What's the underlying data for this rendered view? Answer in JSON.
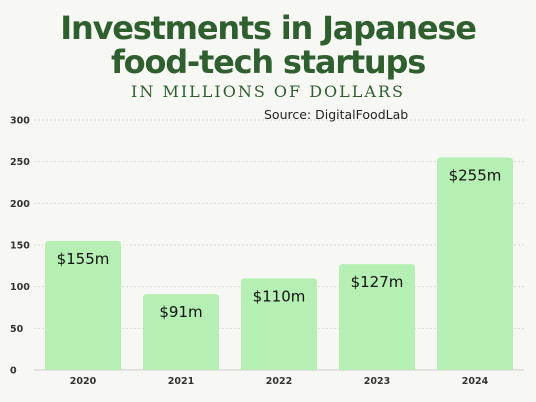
{
  "title_line1": "Investments in Japanese",
  "title_line2": "food-tech startups",
  "subtitle": "IN MILLIONS OF DOLLARS",
  "source": "Source: DigitalFoodLab",
  "colors": {
    "title": "#2f5f2f",
    "bar": "#b6efb4",
    "background": "#f7f7f4",
    "grid": "#d6d6d6"
  },
  "chart_data": {
    "type": "bar",
    "title": "Investments in Japanese food-tech startups",
    "subtitle": "IN MILLIONS OF DOLLARS",
    "categories": [
      "2020",
      "2021",
      "2022",
      "2023",
      "2024"
    ],
    "values": [
      155,
      91,
      110,
      127,
      255
    ],
    "data_labels": [
      "$155m",
      "$91m",
      "$110m",
      "$127m",
      "$255m"
    ],
    "yticks": [
      0,
      50,
      100,
      150,
      200,
      250,
      300
    ],
    "ylim": [
      0,
      300
    ],
    "xlabel": "",
    "ylabel": "",
    "grid": true,
    "legend": "none"
  }
}
